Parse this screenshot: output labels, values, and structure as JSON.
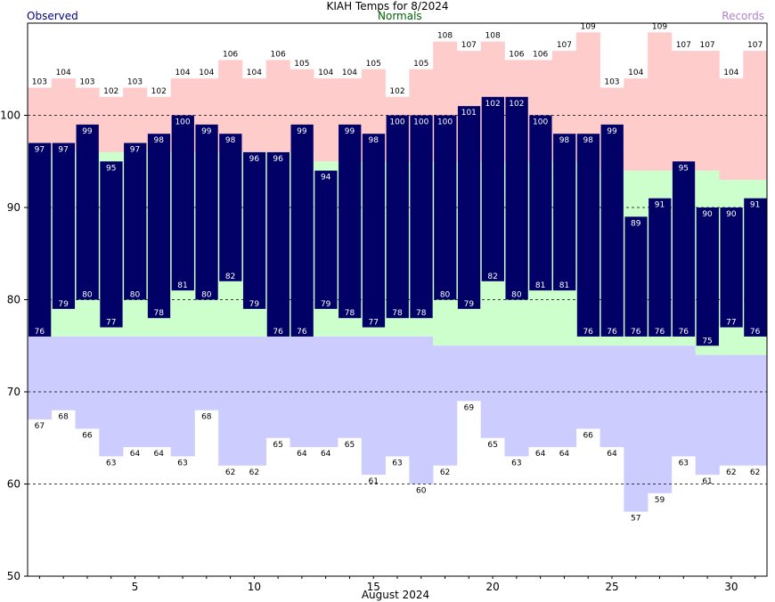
{
  "title": "KIAH Temps for 8/2024",
  "legend": {
    "observed": "Observed",
    "normals": "Normals",
    "records": "Records"
  },
  "colors": {
    "observed": "#000066",
    "normal_band": "#ccffcc",
    "record_high_band": "#ffcccc",
    "record_low_band": "#ccccff",
    "observed_label": "#000080",
    "normals_label": "#006400",
    "records_label": "#b17fd1"
  },
  "chart_data": {
    "type": "bar",
    "xlabel": "August 2024",
    "ylabel": "",
    "ylim": [
      50,
      110
    ],
    "yticks": [
      50,
      60,
      70,
      80,
      90,
      100
    ],
    "xticks": [
      5,
      10,
      15,
      20,
      25,
      30
    ],
    "days": [
      1,
      2,
      3,
      4,
      5,
      6,
      7,
      8,
      9,
      10,
      11,
      12,
      13,
      14,
      15,
      16,
      17,
      18,
      19,
      20,
      21,
      22,
      23,
      24,
      25,
      26,
      27,
      28,
      29,
      30,
      31
    ],
    "series": [
      {
        "name": "Observed",
        "high": [
          97,
          97,
          99,
          95,
          97,
          98,
          100,
          99,
          98,
          96,
          96,
          99,
          94,
          99,
          98,
          100,
          100,
          100,
          101,
          102,
          102,
          100,
          98,
          98,
          99,
          89,
          91,
          95,
          90,
          90,
          91
        ],
        "low": [
          76,
          79,
          80,
          77,
          80,
          78,
          81,
          80,
          82,
          79,
          76,
          76,
          79,
          78,
          77,
          78,
          78,
          80,
          79,
          82,
          80,
          81,
          81,
          76,
          76,
          76,
          76,
          76,
          75,
          77,
          76
        ]
      },
      {
        "name": "Normals",
        "high": [
          97,
          96,
          96,
          96,
          96,
          96,
          96,
          96,
          96,
          96,
          96,
          96,
          95,
          95,
          95,
          95,
          95,
          95,
          95,
          95,
          95,
          95,
          95,
          95,
          94,
          94,
          94,
          94,
          94,
          93,
          93
        ],
        "low": [
          76,
          76,
          76,
          76,
          76,
          76,
          76,
          76,
          76,
          76,
          76,
          76,
          76,
          76,
          76,
          76,
          76,
          75,
          75,
          75,
          75,
          75,
          75,
          75,
          75,
          75,
          75,
          75,
          74,
          74,
          74
        ]
      },
      {
        "name": "Records",
        "high": [
          103,
          104,
          103,
          102,
          103,
          102,
          104,
          104,
          106,
          104,
          106,
          105,
          104,
          104,
          105,
          102,
          105,
          108,
          107,
          108,
          106,
          106,
          107,
          109,
          103,
          104,
          109,
          107,
          107,
          104,
          107
        ],
        "low": [
          67,
          68,
          66,
          63,
          64,
          64,
          63,
          68,
          62,
          62,
          65,
          64,
          64,
          65,
          61,
          63,
          60,
          62,
          69,
          65,
          63,
          64,
          64,
          66,
          64,
          57,
          59,
          63,
          61,
          62,
          62
        ]
      }
    ]
  }
}
